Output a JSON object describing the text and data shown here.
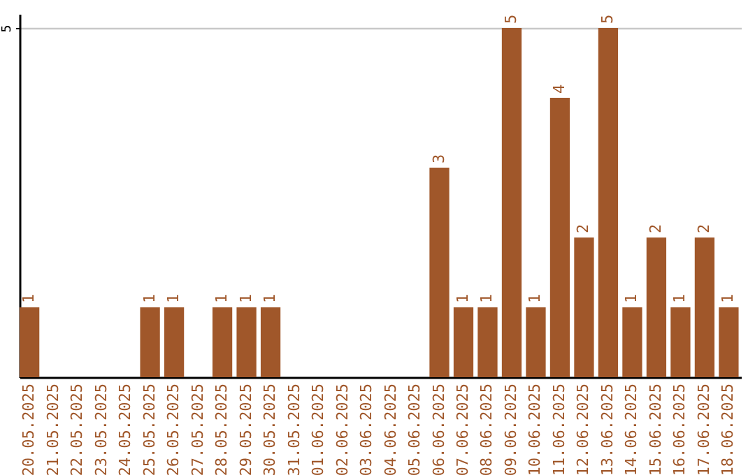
{
  "chart_data": {
    "type": "bar",
    "categories": [
      "20.05.2025",
      "21.05.2025",
      "22.05.2025",
      "23.05.2025",
      "24.05.2025",
      "25.05.2025",
      "26.05.2025",
      "27.05.2025",
      "28.05.2025",
      "29.05.2025",
      "30.05.2025",
      "31.05.2025",
      "01.06.2025",
      "02.06.2025",
      "03.06.2025",
      "04.06.2025",
      "05.06.2025",
      "06.06.2025",
      "07.06.2025",
      "08.06.2025",
      "09.06.2025",
      "10.06.2025",
      "11.06.2025",
      "12.06.2025",
      "13.06.2025",
      "14.06.2025",
      "15.06.2025",
      "16.06.2025",
      "17.06.2025",
      "18.06.2025"
    ],
    "values": [
      1,
      0,
      0,
      0,
      0,
      1,
      1,
      0,
      1,
      1,
      1,
      0,
      0,
      0,
      0,
      0,
      0,
      3,
      1,
      1,
      5,
      1,
      4,
      2,
      5,
      1,
      2,
      1,
      2,
      1
    ],
    "value_labels": [
      "1",
      null,
      null,
      null,
      null,
      "1",
      "1",
      null,
      "1",
      "1",
      "1",
      null,
      null,
      null,
      null,
      null,
      null,
      "3",
      "1",
      "1",
      "5",
      "1",
      "4",
      "2",
      "5",
      "1",
      "2",
      "1",
      "2",
      "1"
    ],
    "color": "#a0572a",
    "ylim": [
      0,
      5.2
    ],
    "yticks": [
      5
    ],
    "grid": "y"
  }
}
